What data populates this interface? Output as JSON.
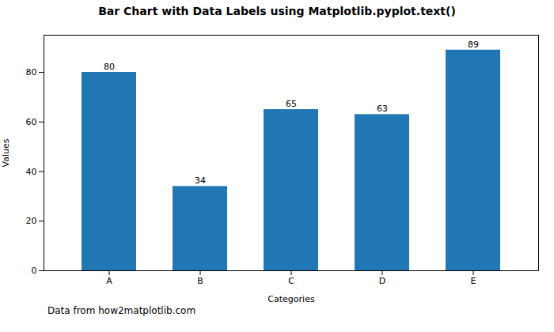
{
  "chart_data": {
    "type": "bar",
    "title": "Bar Chart with Data Labels using Matplotlib.pyplot.text()",
    "xlabel": "Categories",
    "ylabel": "Values",
    "categories": [
      "A",
      "B",
      "C",
      "D",
      "E"
    ],
    "values": [
      80,
      34,
      65,
      63,
      89
    ],
    "color": "#2077b4",
    "ylim": [
      0,
      95
    ],
    "yticks": [
      0,
      20,
      40,
      60,
      80
    ],
    "grid": false,
    "data_labels": true,
    "annotation": "Data from how2matplotlib.com"
  }
}
